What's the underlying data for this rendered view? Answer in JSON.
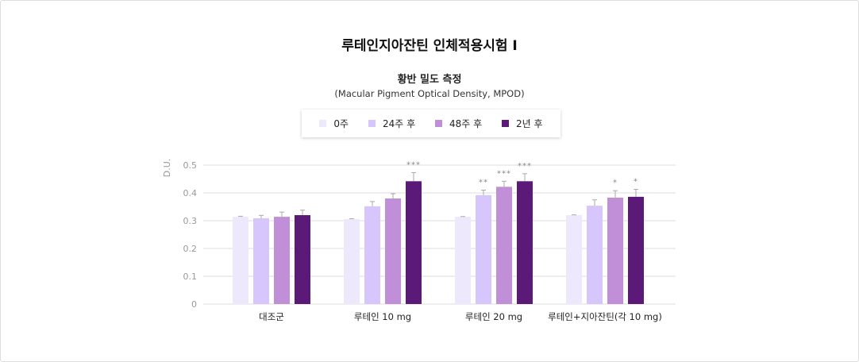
{
  "title": "루테인지아잔틴 인체적용시험 Ⅰ",
  "subtitle": "황반 밀도 측정",
  "subtitle2": "(Macular Pigment Optical Density, MPOD)",
  "chart_data": {
    "type": "bar",
    "ylabel": "D.U.",
    "ylim": [
      0,
      0.5
    ],
    "yticks": [
      "0",
      "0.1",
      "0.2",
      "0.3",
      "0.4",
      "0.5"
    ],
    "grid": true,
    "legend_position": "top",
    "categories": [
      "대조군",
      "루테인 10 mg",
      "루테인 20 mg",
      "루테인+지아잔틴(각 10 mg)"
    ],
    "series": [
      {
        "name": "0주",
        "color": "#ede8fc",
        "values": [
          0.314,
          0.306,
          0.314,
          0.32
        ],
        "errors": [
          0.002,
          0.001,
          0.001,
          0.001
        ],
        "significance": [
          "",
          "",
          "",
          ""
        ]
      },
      {
        "name": "24주 후",
        "color": "#d7c6fb",
        "values": [
          0.309,
          0.352,
          0.392,
          0.354
        ],
        "errors": [
          0.01,
          0.017,
          0.018,
          0.021
        ],
        "significance": [
          "",
          "",
          "**",
          ""
        ]
      },
      {
        "name": "48주 후",
        "color": "#c18fd8",
        "values": [
          0.314,
          0.38,
          0.422,
          0.383
        ],
        "errors": [
          0.017,
          0.017,
          0.02,
          0.025
        ],
        "significance": [
          "",
          "",
          "***",
          "*"
        ]
      },
      {
        "name": "2년 후",
        "color": "#5c1a78",
        "values": [
          0.32,
          0.442,
          0.442,
          0.386
        ],
        "errors": [
          0.018,
          0.031,
          0.027,
          0.027
        ],
        "significance": [
          "",
          "***",
          "***",
          "*"
        ]
      }
    ]
  }
}
